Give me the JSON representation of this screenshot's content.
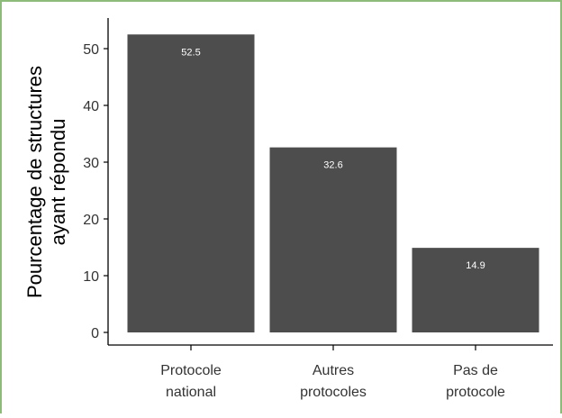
{
  "chart_data": {
    "type": "bar",
    "categories": [
      "Protocole national",
      "Autres protocoles",
      "Pas de protocole"
    ],
    "category_lines": [
      [
        "Protocole",
        "national"
      ],
      [
        "Autres",
        "protocoles"
      ],
      [
        "Pas de",
        "protocole"
      ]
    ],
    "values": [
      52.5,
      32.6,
      14.9
    ],
    "value_labels": [
      "52.5",
      "32.6",
      "14.9"
    ],
    "ylabel_lines": [
      "Pourcentage de structures",
      "ayant répondu"
    ],
    "xlabel": "",
    "ylim": [
      0,
      55
    ],
    "yticks": [
      0,
      10,
      20,
      30,
      40,
      50
    ],
    "grid": false,
    "bar_color": "#4d4d4d",
    "label_color": "#ffffff"
  }
}
